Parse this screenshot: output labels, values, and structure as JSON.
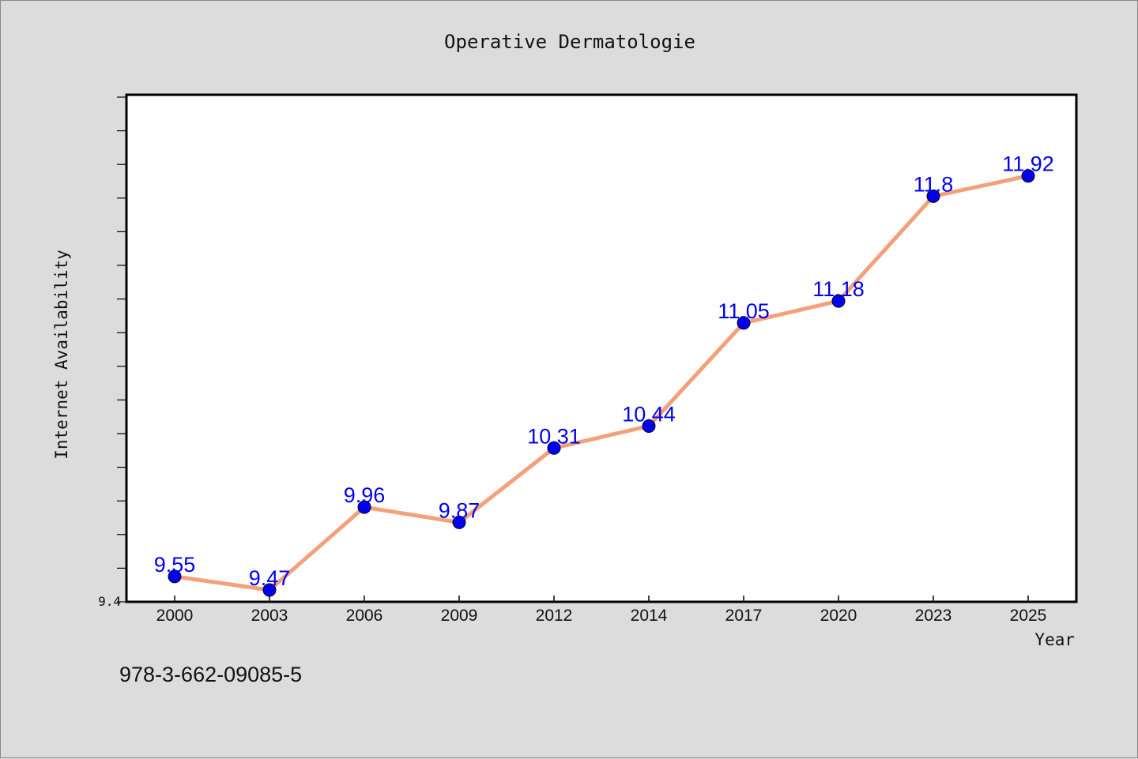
{
  "chart_data": {
    "type": "line",
    "title": "Operative Dermatologie",
    "xlabel": "Year",
    "ylabel": "Internet Availability",
    "categories": [
      "2000",
      "2003",
      "2006",
      "2009",
      "2012",
      "2014",
      "2017",
      "2020",
      "2023",
      "2025"
    ],
    "series": [
      {
        "values": [
          9.55,
          9.47,
          9.96,
          9.87,
          10.31,
          10.44,
          11.05,
          11.18,
          11.8,
          11.92
        ]
      }
    ],
    "ylim": [
      9.4,
      12.4
    ],
    "y_tick_label_shown": "9.4",
    "grid": false,
    "legend": "none",
    "data_labels": [
      "9.55",
      "9.47",
      "9.96",
      "9.87",
      "10.31",
      "10.44",
      "11.05",
      "11.18",
      "11.8",
      "11.92"
    ],
    "colors": {
      "line": "#f4a07a",
      "marker": "#0000ee",
      "label": "#0000ee",
      "background": "#dcdcdc",
      "plot_background": "#ffffff"
    }
  },
  "footer": {
    "isbn": "978-3-662-09085-5"
  }
}
